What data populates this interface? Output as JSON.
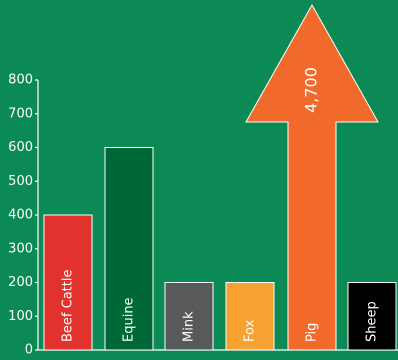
{
  "chart_data": {
    "type": "bar",
    "categories": [
      "Beef Cattle",
      "Equine",
      "Mink",
      "Fox",
      "Pig",
      "Sheep"
    ],
    "values": [
      400,
      600,
      200,
      200,
      4700,
      200
    ],
    "value_labels": [
      null,
      null,
      null,
      null,
      "4,700",
      null
    ],
    "colors": [
      "#e1322d",
      "#006837",
      "#58595b",
      "#f7a132",
      "#f26a2b",
      "#000000"
    ],
    "ylim": [
      0,
      800
    ],
    "yticks": [
      0,
      100,
      200,
      300,
      400,
      500,
      600,
      700,
      800
    ]
  }
}
